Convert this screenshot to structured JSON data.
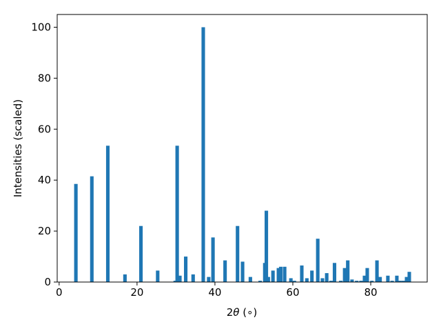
{
  "chart_data": {
    "type": "bar",
    "xlabel_prefix": "2",
    "xlabel_theta": "θ",
    "xlabel_unit": " (∘)",
    "ylabel": "Intensities (scaled)",
    "xlim": [
      -0.5,
      94.5
    ],
    "ylim": [
      0,
      105
    ],
    "x_ticks": [
      0,
      20,
      40,
      60,
      80
    ],
    "y_ticks": [
      0,
      20,
      40,
      60,
      80,
      100
    ],
    "bar_width_deg": 0.9,
    "bar_color": "#1f77b4",
    "grid": false,
    "legend": "none",
    "x": [
      4.3,
      8.4,
      12.5,
      16.9,
      21.0,
      25.3,
      29.8,
      30.3,
      31.0,
      32.5,
      34.4,
      37.0,
      38.4,
      39.5,
      42.6,
      45.8,
      47.1,
      49.1,
      51.6,
      52.8,
      53.2,
      53.7,
      54.9,
      56.3,
      56.9,
      57.9,
      59.5,
      60.4,
      62.3,
      63.6,
      64.9,
      66.4,
      67.6,
      68.7,
      69.8,
      70.7,
      72.3,
      73.3,
      74.1,
      75.2,
      76.4,
      77.5,
      78.4,
      79.1,
      80.3,
      81.6,
      82.4,
      84.4,
      85.5,
      86.7,
      87.4,
      88.3,
      89.2,
      89.9
    ],
    "values": [
      38.5,
      41.5,
      53.5,
      3.0,
      22.0,
      4.5,
      0.5,
      53.5,
      2.5,
      10.0,
      3.0,
      100.0,
      2.0,
      17.5,
      8.5,
      22.0,
      8.0,
      2.0,
      0.5,
      7.5,
      28.0,
      2.0,
      4.5,
      5.5,
      6.0,
      6.0,
      1.5,
      0.5,
      6.5,
      1.5,
      4.5,
      17.0,
      1.5,
      3.5,
      0.5,
      7.5,
      0.5,
      5.5,
      8.5,
      1.0,
      0.5,
      0.5,
      2.5,
      5.5,
      0.5,
      8.5,
      2.0,
      2.5,
      0.5,
      2.5,
      0.5,
      0.5,
      2.0,
      4.0
    ]
  }
}
